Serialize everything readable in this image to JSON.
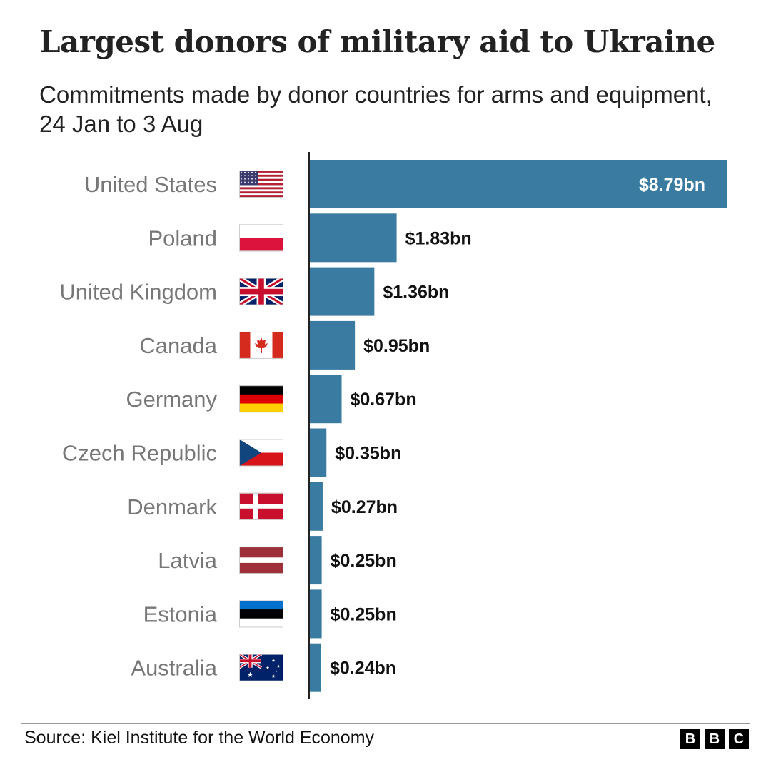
{
  "chart_data": {
    "type": "bar",
    "orientation": "horizontal",
    "title": "Largest donors of military aid to Ukraine",
    "subtitle": "Commitments made by donor countries for arms and equipment, 24 Jan to 3 Aug",
    "categories": [
      "United States",
      "Poland",
      "United Kingdom",
      "Canada",
      "Germany",
      "Czech Republic",
      "Denmark",
      "Latvia",
      "Estonia",
      "Australia"
    ],
    "values": [
      8.79,
      1.83,
      1.36,
      0.95,
      0.67,
      0.35,
      0.27,
      0.25,
      0.25,
      0.24
    ],
    "value_labels": [
      "$8.79bn",
      "$1.83bn",
      "$1.36bn",
      "$0.95bn",
      "$0.67bn",
      "$0.35bn",
      "$0.27bn",
      "$0.25bn",
      "$0.25bn",
      "$0.24bn"
    ],
    "flags": [
      "flag-us-icon",
      "flag-poland-icon",
      "flag-uk-icon",
      "flag-canada-icon",
      "flag-germany-icon",
      "flag-czech-icon",
      "flag-denmark-icon",
      "flag-latvia-icon",
      "flag-estonia-icon",
      "flag-australia-icon"
    ],
    "xlim": [
      0,
      8.79
    ],
    "unit": "US$ billion",
    "bar_color": "#3a7ba1",
    "label_color": "#777777"
  },
  "footer": {
    "source": "Source: Kiel Institute for the World Economy",
    "logo_letters": [
      "B",
      "B",
      "C"
    ]
  }
}
